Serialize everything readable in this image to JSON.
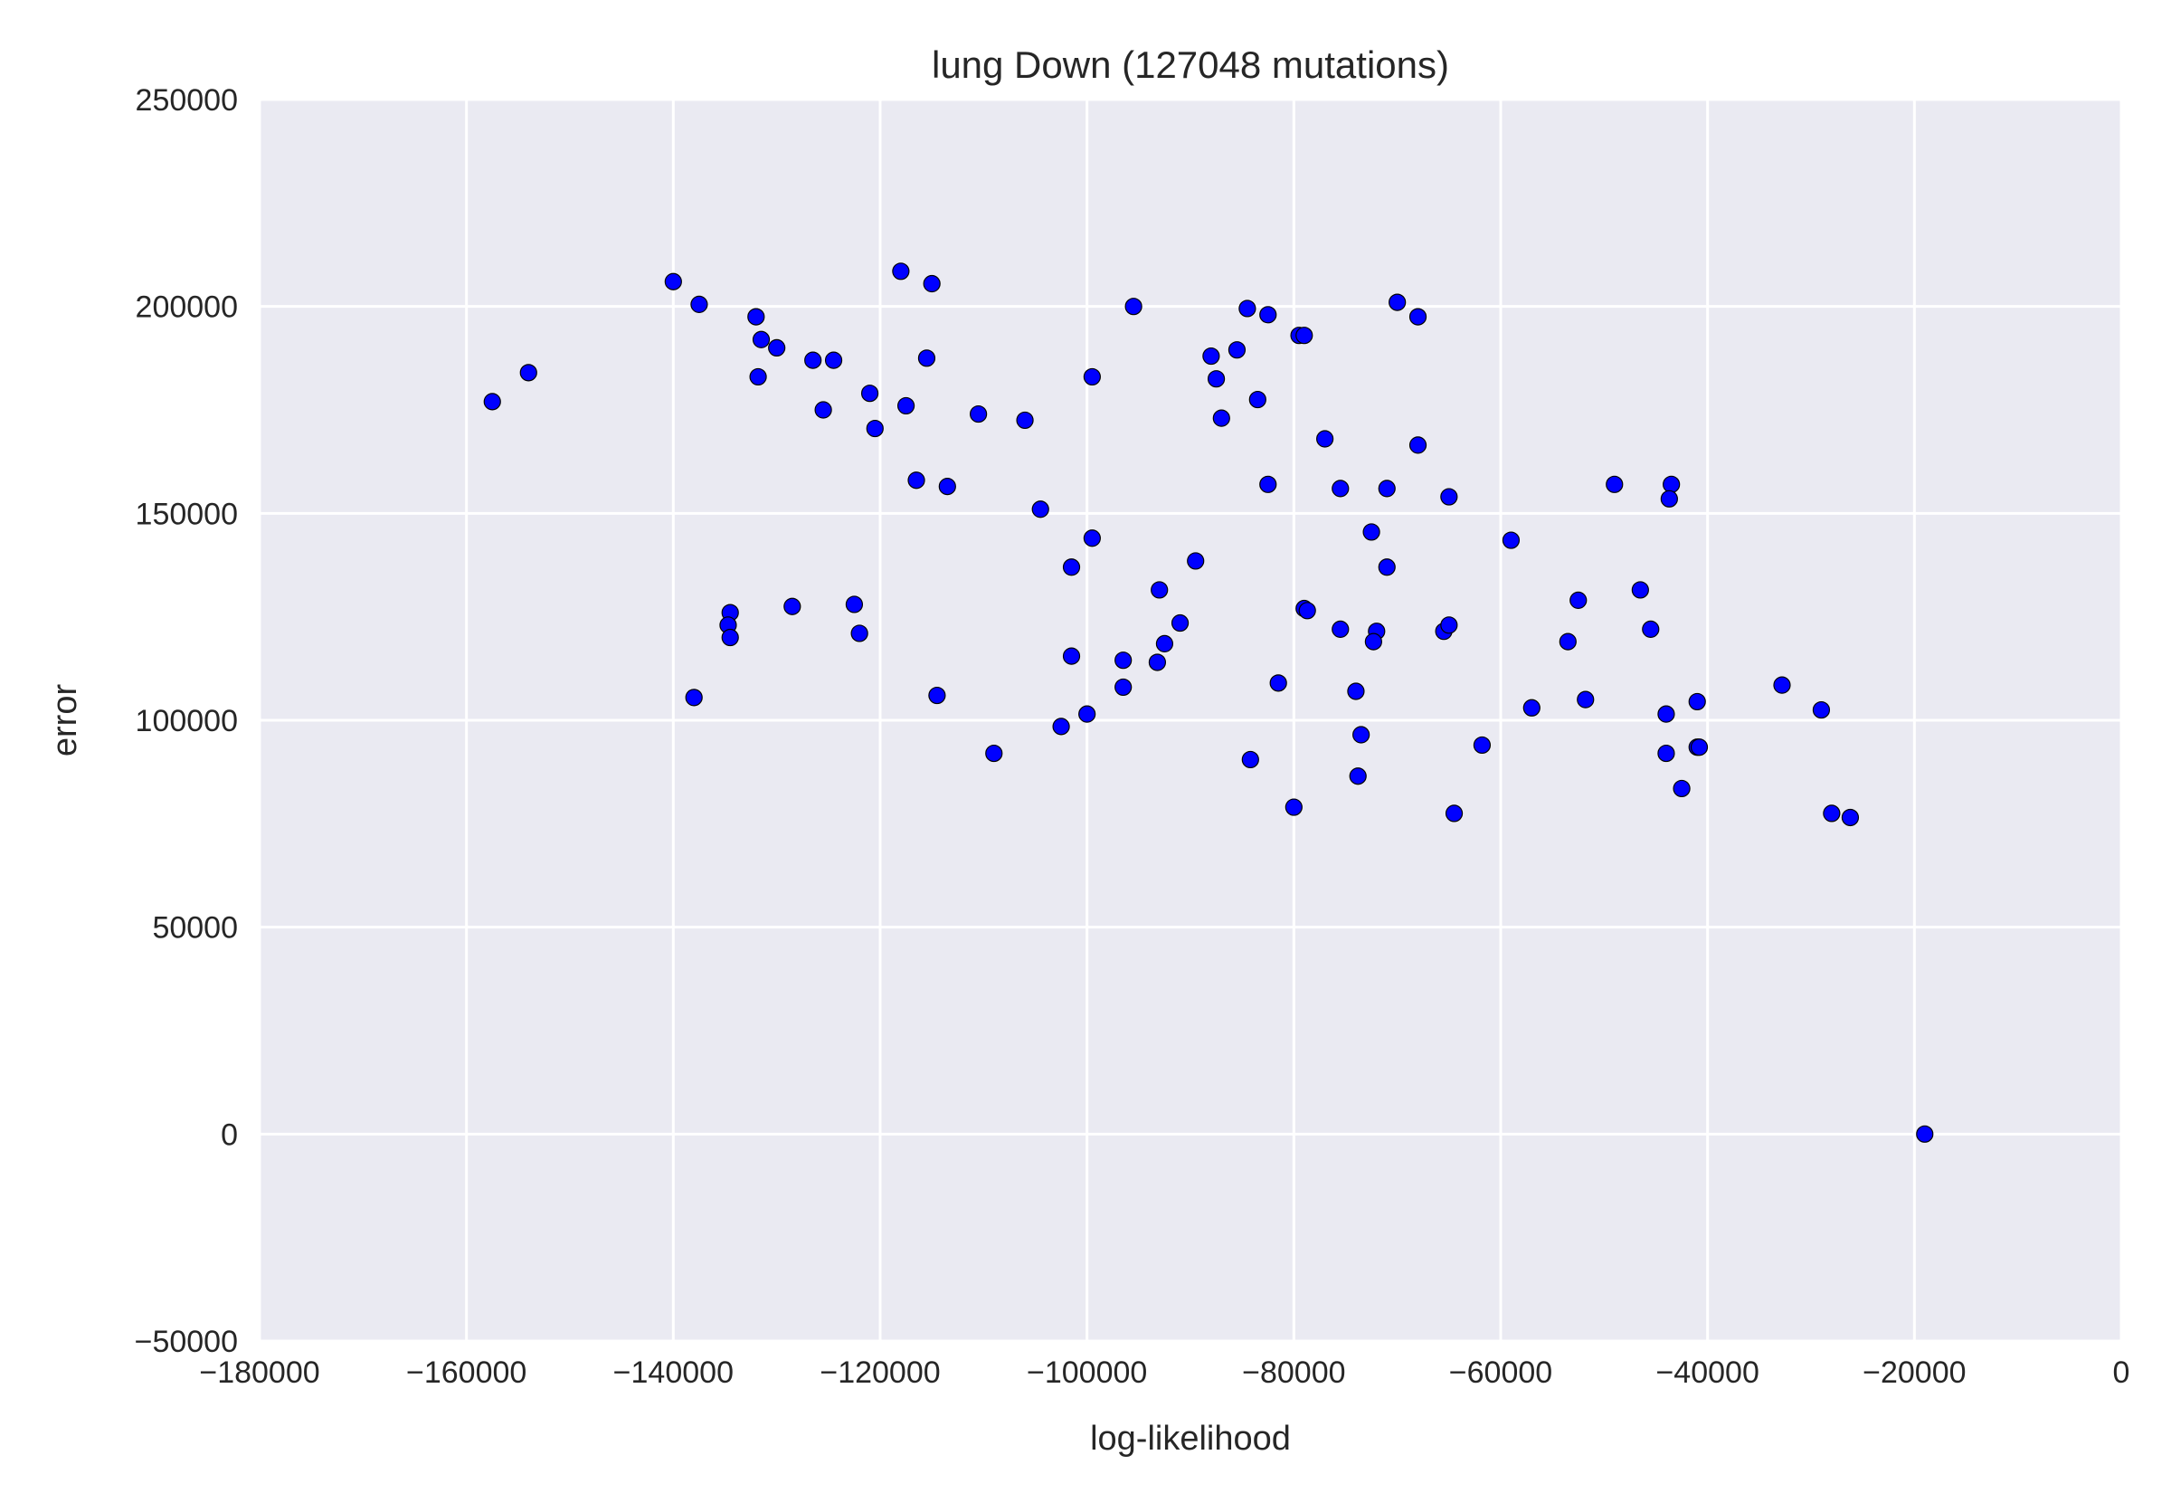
{
  "chart_data": {
    "type": "scatter",
    "title": "lung Down (127048 mutations)",
    "xlabel": "log-likelihood",
    "ylabel": "error",
    "xlim": [
      -180000,
      0
    ],
    "ylim": [
      -50000,
      250000
    ],
    "xticks": [
      -180000,
      -160000,
      -140000,
      -120000,
      -100000,
      -80000,
      -60000,
      -40000,
      -20000,
      0
    ],
    "xtick_labels": [
      "−180000",
      "−160000",
      "−140000",
      "−120000",
      "−100000",
      "−80000",
      "−60000",
      "−40000",
      "−20000",
      "0"
    ],
    "yticks": [
      -50000,
      0,
      50000,
      100000,
      150000,
      200000,
      250000
    ],
    "ytick_labels": [
      "−50000",
      "0",
      "50000",
      "100000",
      "150000",
      "200000",
      "250000"
    ],
    "grid": true,
    "colors": {
      "background": "#eaeaf2",
      "grid": "#ffffff",
      "point": "#0000ff"
    },
    "points": [
      [
        -157500,
        177000
      ],
      [
        -154000,
        184000
      ],
      [
        -140000,
        206000
      ],
      [
        -137500,
        200500
      ],
      [
        -132000,
        197500
      ],
      [
        -131500,
        192000
      ],
      [
        -131800,
        183000
      ],
      [
        -130000,
        190000
      ],
      [
        -126500,
        187000
      ],
      [
        -124500,
        187000
      ],
      [
        -125500,
        175000
      ],
      [
        -121000,
        179000
      ],
      [
        -120500,
        170500
      ],
      [
        -118000,
        208500
      ],
      [
        -115000,
        205500
      ],
      [
        -117500,
        176000
      ],
      [
        -115500,
        187500
      ],
      [
        -116500,
        158000
      ],
      [
        -113500,
        156500
      ],
      [
        -110500,
        174000
      ],
      [
        -106000,
        172500
      ],
      [
        -104500,
        151000
      ],
      [
        -99500,
        183000
      ],
      [
        -95500,
        200000
      ],
      [
        -99500,
        144000
      ],
      [
        -101500,
        137000
      ],
      [
        -88000,
        188000
      ],
      [
        -87500,
        182500
      ],
      [
        -87000,
        173000
      ],
      [
        -85500,
        189500
      ],
      [
        -84500,
        199500
      ],
      [
        -82500,
        198000
      ],
      [
        -79500,
        193000
      ],
      [
        -79000,
        193000
      ],
      [
        -83500,
        177500
      ],
      [
        -82500,
        157000
      ],
      [
        -77000,
        168000
      ],
      [
        -75500,
        156000
      ],
      [
        -70000,
        201000
      ],
      [
        -68000,
        197500
      ],
      [
        -68000,
        166500
      ],
      [
        -71000,
        156000
      ],
      [
        -65000,
        154000
      ],
      [
        -72500,
        145500
      ],
      [
        -71000,
        137000
      ],
      [
        -59000,
        143500
      ],
      [
        -49000,
        157000
      ],
      [
        -43500,
        157000
      ],
      [
        -43700,
        153500
      ],
      [
        -134500,
        126000
      ],
      [
        -134700,
        123000
      ],
      [
        -134500,
        120000
      ],
      [
        -138000,
        105500
      ],
      [
        -128500,
        127500
      ],
      [
        -122500,
        128000
      ],
      [
        -122000,
        121000
      ],
      [
        -114500,
        106000
      ],
      [
        -109000,
        92000
      ],
      [
        -93000,
        131500
      ],
      [
        -91000,
        123500
      ],
      [
        -89500,
        138500
      ],
      [
        -92500,
        118500
      ],
      [
        -93200,
        114000
      ],
      [
        -96500,
        114500
      ],
      [
        -96500,
        108000
      ],
      [
        -101500,
        115500
      ],
      [
        -100000,
        101500
      ],
      [
        -102500,
        98500
      ],
      [
        -79000,
        127000
      ],
      [
        -78700,
        126500
      ],
      [
        -75500,
        122000
      ],
      [
        -72000,
        121500
      ],
      [
        -72300,
        119000
      ],
      [
        -65500,
        121500
      ],
      [
        -65000,
        123000
      ],
      [
        -81500,
        109000
      ],
      [
        -74000,
        107000
      ],
      [
        -73500,
        96500
      ],
      [
        -73800,
        86500
      ],
      [
        -84200,
        90500
      ],
      [
        -80000,
        79000
      ],
      [
        -61800,
        94000
      ],
      [
        -64500,
        77500
      ],
      [
        -52500,
        129000
      ],
      [
        -53500,
        119000
      ],
      [
        -51800,
        105000
      ],
      [
        -57000,
        103000
      ],
      [
        -46500,
        131500
      ],
      [
        -45500,
        122000
      ],
      [
        -44000,
        101500
      ],
      [
        -44000,
        92000
      ],
      [
        -42500,
        83500
      ],
      [
        -41000,
        104500
      ],
      [
        -41000,
        93500
      ],
      [
        -40800,
        93500
      ],
      [
        -32800,
        108500
      ],
      [
        -29000,
        102500
      ],
      [
        -28000,
        77500
      ],
      [
        -26200,
        76500
      ],
      [
        -19000,
        0
      ]
    ]
  }
}
